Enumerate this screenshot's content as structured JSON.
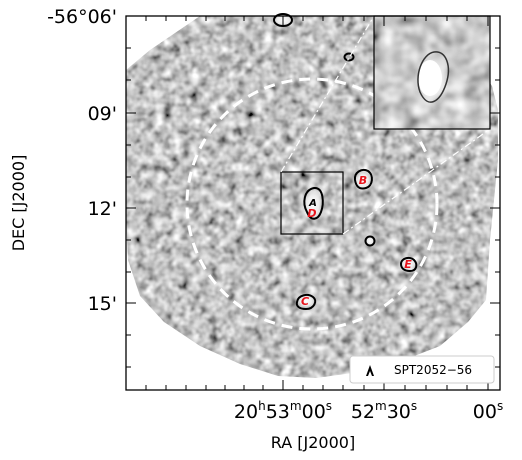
{
  "axes": {
    "x_label": "RA [J2000]",
    "y_label": "DEC [J2000]",
    "x_ticks": [
      {
        "main": "20",
        "sup1": "h",
        "mid": "53",
        "sup2": "m",
        "tail": "00",
        "sup3": "s"
      },
      {
        "main": "52",
        "sup1": "m",
        "mid": "30",
        "sup2": "s",
        "tail": "",
        "sup3": ""
      },
      {
        "main": "00",
        "sup1": "s",
        "mid": "",
        "sup2": "",
        "tail": "",
        "sup3": ""
      }
    ],
    "y_ticks": [
      "-56°06'",
      "09'",
      "12'",
      "15'"
    ]
  },
  "sources": [
    {
      "label": "A"
    },
    {
      "label": "B"
    },
    {
      "label": "C"
    },
    {
      "label": "D"
    },
    {
      "label": "E"
    }
  ],
  "legend": {
    "text": "SPT2052−56"
  },
  "colors": {
    "contour": "#000000",
    "label": "#e8141c",
    "circle": "#ffffff",
    "background": "#ffffff"
  }
}
